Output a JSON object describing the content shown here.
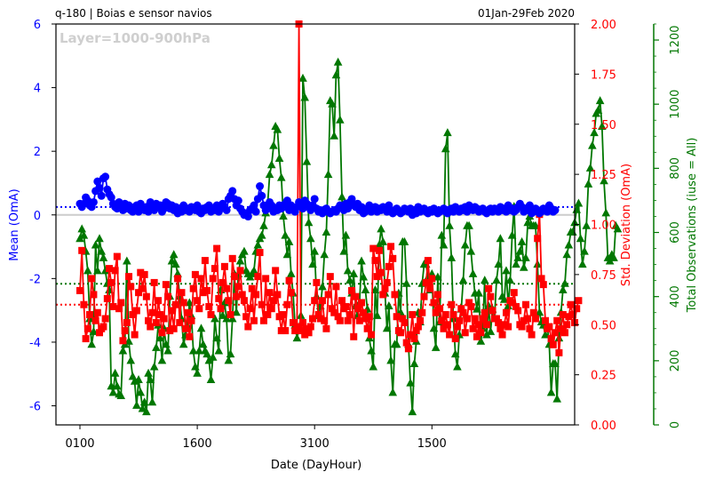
{
  "header": {
    "left_title": "q-180  |  Boias e sensor navios",
    "right_title": "01Jan-29Feb 2020"
  },
  "chart_data": {
    "type": "line",
    "annotation": "Layer=1000-900hPa",
    "xlabel": "Date (DayHour)",
    "x_ticks": [
      "0100",
      "1600",
      "3100",
      "1500"
    ],
    "x_count": 244,
    "left_axis": {
      "label": "Mean (OmA)",
      "ylim": [
        -6.6,
        6
      ],
      "ticks": [
        -6,
        -4,
        -2,
        0,
        2,
        4,
        6
      ],
      "color": "#0000ff"
    },
    "right_axis": {
      "label": "Std. Deviation (OmA)",
      "ylim": [
        0,
        2
      ],
      "ticks": [
        "0.00",
        "0.25",
        "0.50",
        "0.75",
        "1.00",
        "1.25",
        "1.50",
        "1.75",
        "2.00"
      ],
      "color": "#ff0000"
    },
    "far_right_axis": {
      "label": "Total Observations (iuse = All)",
      "ylim": [
        0,
        1250
      ],
      "ticks": [
        "0",
        "200",
        "400",
        "600",
        "800",
        "1000",
        "1200"
      ],
      "color": "#007700"
    },
    "reference_lines": {
      "mean_avg": 0.25,
      "std_avg": 0.6,
      "count_avg": 440,
      "zero_line": 0
    },
    "series": [
      {
        "axis": "left",
        "marker": "circle",
        "color": "#0000ff",
        "values": [
          0.35,
          0.25,
          0.35,
          0.55,
          0.45,
          0.3,
          0.25,
          0.4,
          0.75,
          1.05,
          0.85,
          0.6,
          1.15,
          1.2,
          0.8,
          0.65,
          0.55,
          0.35,
          0.25,
          0.2,
          0.4,
          0.25,
          0.15,
          0.35,
          0.2,
          0.3,
          0.15,
          0.1,
          0.25,
          0.3,
          0.1,
          0.35,
          0.2,
          0.15,
          0.25,
          0.1,
          0.4,
          0.2,
          0.15,
          0.35,
          0.25,
          0.3,
          0.1,
          0.2,
          0.4,
          0.35,
          0.2,
          0.3,
          0.15,
          0.25,
          0.05,
          0.2,
          0.1,
          0.3,
          0.15,
          0.2,
          0.1,
          0.25,
          0.2,
          0.15,
          0.3,
          0.1,
          0.05,
          0.2,
          0.15,
          0.25,
          0.3,
          0.1,
          0.2,
          0.15,
          0.3,
          0.1,
          0.2,
          0.35,
          0.25,
          0.15,
          0.5,
          0.6,
          0.75,
          0.5,
          0.3,
          0.45,
          0.2,
          0.1,
          0.0,
          0.05,
          -0.05,
          0.15,
          0.2,
          0.3,
          0.1,
          0.5,
          0.9,
          0.6,
          0.3,
          0.15,
          0.2,
          0.4,
          0.3,
          0.1,
          0.2,
          0.15,
          0.3,
          0.2,
          0.25,
          0.35,
          0.45,
          0.15,
          0.3,
          0.2,
          0.1,
          0.25,
          0.4,
          0.3,
          0.2,
          0.45,
          0.35,
          0.25,
          0.15,
          0.3,
          0.5,
          0.2,
          0.1,
          0.15,
          0.05,
          0.1,
          0.2,
          0.1,
          0.05,
          0.1,
          0.15,
          0.1,
          0.2,
          0.3,
          0.25,
          0.15,
          0.35,
          0.2,
          0.4,
          0.5,
          0.3,
          0.25,
          0.35,
          0.15,
          0.25,
          0.05,
          0.1,
          0.2,
          0.3,
          0.1,
          0.15,
          0.25,
          0.1,
          0.2,
          0.15,
          0.25,
          0.2,
          0.1,
          0.3,
          0.1,
          0.05,
          0.15,
          0.2,
          0.1,
          0.05,
          0.1,
          0.2,
          0.15,
          0.1,
          0.2,
          0.0,
          0.15,
          0.05,
          0.25,
          0.1,
          0.15,
          0.2,
          0.1,
          0.05,
          0.15,
          0.1,
          0.2,
          0.15,
          0.05,
          0.1,
          0.15,
          0.2,
          0.1,
          0.05,
          0.15,
          0.2,
          0.1,
          0.25,
          0.15,
          0.1,
          0.2,
          0.15,
          0.25,
          0.1,
          0.3,
          0.2,
          0.15,
          0.25,
          0.2,
          0.1,
          0.15,
          0.2,
          0.1,
          0.05,
          0.15,
          0.2,
          0.1,
          0.2,
          0.15,
          0.1,
          0.25,
          0.15,
          0.2,
          0.1,
          0.3,
          0.15,
          0.2,
          0.1,
          0.15,
          0.25,
          0.35,
          0.25,
          0.1,
          0.2,
          0.15,
          0.3,
          0.05,
          0.1,
          0.2,
          0.15,
          0.05,
          0.1,
          0.2,
          0.15,
          0.1,
          0.3,
          0.2,
          0.1,
          0.15
        ]
      },
      {
        "axis": "right",
        "marker": "square",
        "color": "#ff0000",
        "values": [
          0.67,
          0.87,
          0.6,
          0.43,
          0.48,
          0.55,
          0.73,
          0.65,
          0.52,
          0.56,
          0.46,
          0.48,
          0.49,
          0.53,
          0.63,
          0.78,
          0.71,
          0.59,
          0.77,
          0.84,
          0.58,
          0.61,
          0.42,
          0.47,
          0.51,
          0.74,
          0.69,
          0.55,
          0.45,
          0.57,
          0.66,
          0.76,
          0.68,
          0.75,
          0.64,
          0.52,
          0.49,
          0.56,
          0.71,
          0.51,
          0.62,
          0.55,
          0.46,
          0.53,
          0.7,
          0.64,
          0.47,
          0.57,
          0.48,
          0.6,
          0.73,
          0.51,
          0.66,
          0.61,
          0.48,
          0.56,
          0.44,
          0.52,
          0.68,
          0.75,
          0.62,
          0.58,
          0.73,
          0.66,
          0.82,
          0.67,
          0.59,
          0.55,
          0.73,
          0.78,
          0.88,
          0.63,
          0.58,
          0.71,
          0.79,
          0.68,
          0.62,
          0.55,
          0.83,
          0.74,
          0.64,
          0.69,
          0.77,
          0.65,
          0.62,
          0.54,
          0.49,
          0.58,
          0.68,
          0.52,
          0.65,
          0.74,
          0.86,
          0.6,
          0.52,
          0.73,
          0.55,
          0.66,
          0.58,
          0.62,
          0.77,
          0.65,
          0.54,
          0.47,
          0.55,
          0.47,
          0.6,
          0.72,
          0.66,
          0.51,
          0.47,
          0.49,
          2.05,
          0.47,
          0.51,
          0.45,
          0.48,
          0.46,
          0.49,
          0.53,
          0.62,
          0.71,
          0.55,
          0.53,
          0.62,
          0.52,
          0.48,
          0.65,
          0.74,
          0.58,
          0.56,
          0.69,
          0.54,
          0.52,
          0.62,
          0.58,
          0.59,
          0.52,
          0.55,
          0.67,
          0.44,
          0.64,
          0.58,
          0.52,
          0.61,
          0.56,
          0.53,
          0.48,
          0.54,
          0.45,
          0.88,
          0.82,
          0.74,
          0.87,
          0.76,
          0.65,
          0.68,
          0.71,
          0.79,
          0.89,
          0.83,
          0.65,
          0.54,
          0.47,
          0.46,
          0.53,
          0.51,
          0.41,
          0.38,
          0.45,
          0.55,
          0.43,
          0.47,
          0.49,
          0.52,
          0.56,
          0.64,
          0.71,
          0.82,
          0.68,
          0.73,
          0.61,
          0.56,
          0.65,
          0.58,
          0.52,
          0.48,
          0.55,
          0.5,
          0.45,
          0.6,
          0.55,
          0.43,
          0.49,
          0.52,
          0.58,
          0.56,
          0.46,
          0.53,
          0.61,
          0.59,
          0.48,
          0.53,
          0.44,
          0.5,
          0.46,
          0.53,
          0.56,
          0.5,
          0.68,
          0.64,
          0.57,
          0.53,
          0.53,
          0.51,
          0.48,
          0.45,
          0.5,
          0.56,
          0.49,
          0.62,
          0.61,
          0.66,
          0.59,
          0.57,
          0.5,
          0.49,
          0.52,
          0.6,
          0.53,
          0.48,
          0.45,
          0.56,
          0.53,
          0.93,
          1.05,
          0.73,
          0.7,
          0.52,
          0.48,
          0.49,
          0.43,
          0.4,
          0.46,
          0.52,
          0.36,
          0.48,
          0.55,
          0.46,
          0.5,
          0.54,
          0.6,
          0.55,
          0.51,
          0.58,
          0.62
        ]
      },
      {
        "axis": "far_right",
        "marker": "triangle",
        "color": "#007700",
        "values": [
          580,
          610,
          590,
          540,
          480,
          330,
          250,
          290,
          560,
          480,
          580,
          540,
          520,
          480,
          440,
          420,
          120,
          100,
          160,
          120,
          95,
          90,
          230,
          250,
          510,
          260,
          200,
          150,
          135,
          60,
          140,
          100,
          50,
          70,
          40,
          160,
          140,
          70,
          180,
          240,
          310,
          270,
          200,
          300,
          250,
          230,
          400,
          510,
          530,
          500,
          470,
          400,
          330,
          250,
          280,
          310,
          380,
          340,
          230,
          180,
          160,
          230,
          300,
          250,
          230,
          220,
          200,
          140,
          210,
          330,
          270,
          230,
          420,
          340,
          380,
          330,
          200,
          220,
          330,
          470,
          350,
          470,
          510,
          530,
          540,
          480,
          470,
          460,
          470,
          480,
          540,
          560,
          580,
          590,
          620,
          660,
          690,
          780,
          810,
          870,
          930,
          920,
          830,
          770,
          650,
          590,
          530,
          570,
          470,
          410,
          310,
          270,
          300,
          340,
          1080,
          1020,
          820,
          630,
          580,
          500,
          540,
          400,
          340,
          370,
          430,
          530,
          600,
          780,
          1010,
          1000,
          900,
          1090,
          1130,
          950,
          710,
          540,
          590,
          480,
          450,
          410,
          470,
          370,
          340,
          380,
          510,
          460,
          420,
          360,
          270,
          230,
          180,
          420,
          340,
          560,
          610,
          570,
          410,
          300,
          370,
          200,
          100,
          250,
          250,
          410,
          350,
          570,
          570,
          440,
          250,
          130,
          40,
          190,
          260,
          350,
          320,
          440,
          500,
          500,
          460,
          420,
          470,
          300,
          240,
          460,
          320,
          590,
          560,
          860,
          910,
          620,
          520,
          330,
          220,
          180,
          280,
          360,
          450,
          560,
          620,
          620,
          540,
          470,
          410,
          360,
          410,
          260,
          300,
          450,
          280,
          370,
          290,
          360,
          330,
          450,
          500,
          580,
          400,
          390,
          480,
          370,
          450,
          590,
          680,
          500,
          520,
          540,
          570,
          490,
          520,
          630,
          650,
          620,
          620,
          620,
          500,
          350,
          320,
          310,
          280,
          310,
          250,
          100,
          190,
          190,
          80,
          270,
          350,
          420,
          440,
          530,
          560,
          600,
          600,
          630,
          670,
          690,
          580,
          500,
          540,
          620,
          750,
          800,
          870,
          910,
          970,
          980,
          1010,
          930,
          760,
          660,
          520,
          510,
          530,
          520,
          620,
          610
        ]
      }
    ]
  }
}
